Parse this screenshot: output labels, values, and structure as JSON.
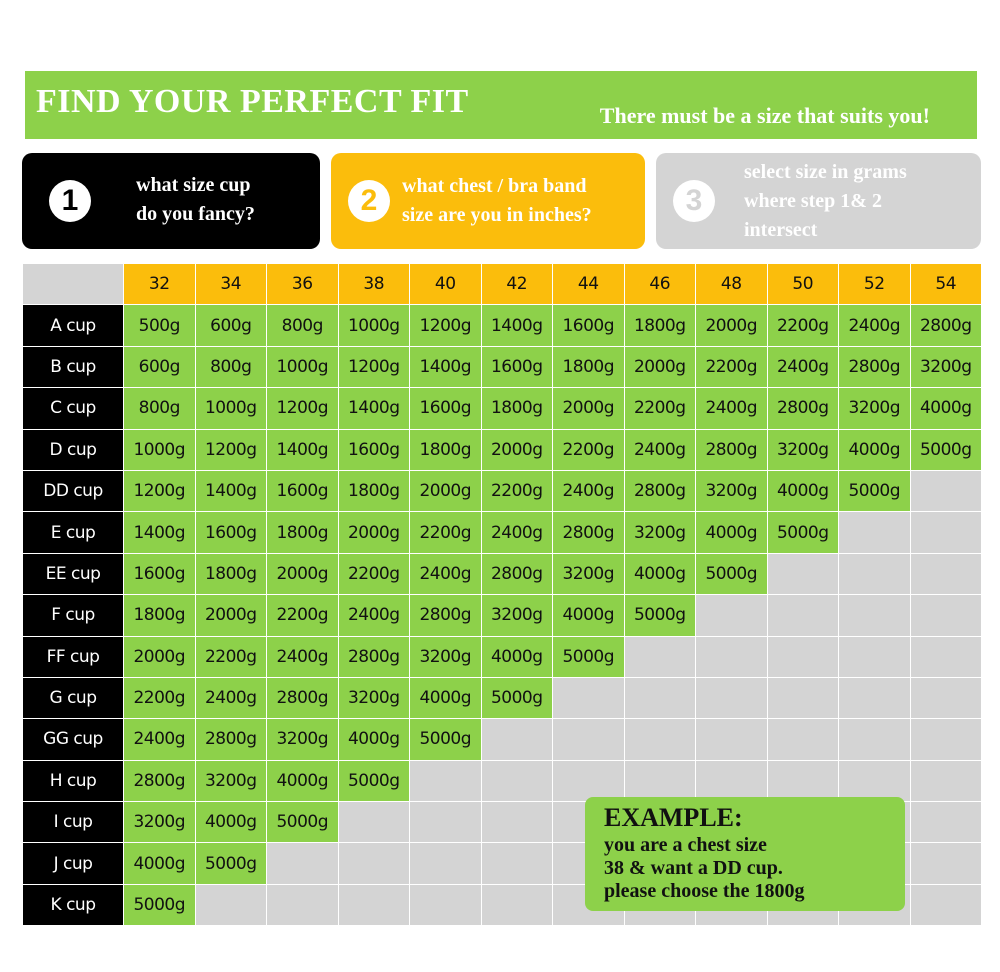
{
  "banner": {
    "title": "FIND YOUR PERFECT FIT",
    "subtitle": "There must be a size that suits you!"
  },
  "steps": [
    {
      "number": "1",
      "text": "what size cup\ndo you fancy?"
    },
    {
      "number": "2",
      "text": "what chest / bra band\nsize are you in inches?"
    },
    {
      "number": "3",
      "text": "select size in grams\nwhere step 1& 2\nintersect"
    }
  ],
  "chart_data": {
    "type": "table",
    "columns": [
      "32",
      "34",
      "36",
      "38",
      "40",
      "42",
      "44",
      "46",
      "48",
      "50",
      "52",
      "54"
    ],
    "rows": [
      {
        "label": "A cup",
        "values": [
          "500g",
          "600g",
          "800g",
          "1000g",
          "1200g",
          "1400g",
          "1600g",
          "1800g",
          "2000g",
          "2200g",
          "2400g",
          "2800g"
        ]
      },
      {
        "label": "B cup",
        "values": [
          "600g",
          "800g",
          "1000g",
          "1200g",
          "1400g",
          "1600g",
          "1800g",
          "2000g",
          "2200g",
          "2400g",
          "2800g",
          "3200g"
        ]
      },
      {
        "label": "C cup",
        "values": [
          "800g",
          "1000g",
          "1200g",
          "1400g",
          "1600g",
          "1800g",
          "2000g",
          "2200g",
          "2400g",
          "2800g",
          "3200g",
          "4000g"
        ]
      },
      {
        "label": "D cup",
        "values": [
          "1000g",
          "1200g",
          "1400g",
          "1600g",
          "1800g",
          "2000g",
          "2200g",
          "2400g",
          "2800g",
          "3200g",
          "4000g",
          "5000g"
        ]
      },
      {
        "label": "DD cup",
        "values": [
          "1200g",
          "1400g",
          "1600g",
          "1800g",
          "2000g",
          "2200g",
          "2400g",
          "2800g",
          "3200g",
          "4000g",
          "5000g"
        ]
      },
      {
        "label": "E cup",
        "values": [
          "1400g",
          "1600g",
          "1800g",
          "2000g",
          "2200g",
          "2400g",
          "2800g",
          "3200g",
          "4000g",
          "5000g"
        ]
      },
      {
        "label": "EE cup",
        "values": [
          "1600g",
          "1800g",
          "2000g",
          "2200g",
          "2400g",
          "2800g",
          "3200g",
          "4000g",
          "5000g"
        ]
      },
      {
        "label": "F cup",
        "values": [
          "1800g",
          "2000g",
          "2200g",
          "2400g",
          "2800g",
          "3200g",
          "4000g",
          "5000g"
        ]
      },
      {
        "label": "FF cup",
        "values": [
          "2000g",
          "2200g",
          "2400g",
          "2800g",
          "3200g",
          "4000g",
          "5000g"
        ]
      },
      {
        "label": "G cup",
        "values": [
          "2200g",
          "2400g",
          "2800g",
          "3200g",
          "4000g",
          "5000g"
        ]
      },
      {
        "label": "GG cup",
        "values": [
          "2400g",
          "2800g",
          "3200g",
          "4000g",
          "5000g"
        ]
      },
      {
        "label": "H cup",
        "values": [
          "2800g",
          "3200g",
          "4000g",
          "5000g"
        ]
      },
      {
        "label": "I cup",
        "values": [
          "3200g",
          "4000g",
          "5000g"
        ]
      },
      {
        "label": "J cup",
        "values": [
          "4000g",
          "5000g"
        ]
      },
      {
        "label": "K cup",
        "values": [
          "5000g"
        ]
      }
    ]
  },
  "example": {
    "title": "EXAMPLE:",
    "body": "you are a chest size\n38 & want a DD cup.\nplease choose the 1800g"
  },
  "colors": {
    "green": "#8dd14a",
    "yellow": "#fbbd0c",
    "grey": "#d4d4d4",
    "black": "#000000"
  }
}
